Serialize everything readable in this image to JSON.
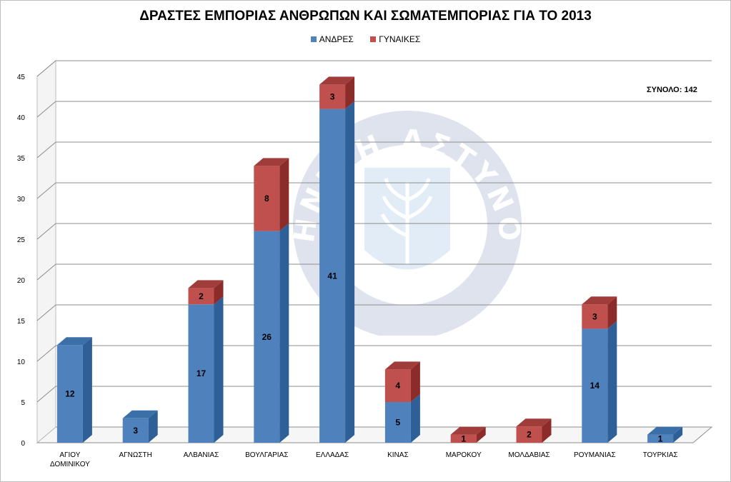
{
  "chart_data": {
    "type": "bar",
    "stacked": true,
    "title": "ΔΡΑΣΤΕΣ ΕΜΠΟΡΙΑΣ ΑΝΘΡΩΠΩΝ ΚΑΙ ΣΩΜΑΤΕΜΠΟΡΙΑΣ ΓΙΑ ΤΟ 2013",
    "annotation": "ΣΥΝΟΛΟ: 142",
    "categories": [
      "ΑΓΙΟΥ ΔΟΜΙΝΙΚΟΥ",
      "ΑΓΝΩΣΤΗ",
      "ΑΛΒΑΝΙΑΣ",
      "ΒΟΥΛΓΑΡΙΑΣ",
      "ΕΛΛΑΔΑΣ",
      "ΚΙΝΑΣ",
      "ΜΑΡΟΚΟΥ",
      "ΜΟΛΔΑΒΙΑΣ",
      "ΡΟΥΜΑΝΙΑΣ",
      "ΤΟΥΡΚΙΑΣ"
    ],
    "series": [
      {
        "name": "ΑΝΔΡΕΣ",
        "color": "#4f81bd",
        "values": [
          12,
          3,
          17,
          26,
          41,
          5,
          0,
          0,
          14,
          1
        ]
      },
      {
        "name": "ΓΥΝΑΙΚΕΣ",
        "color": "#c0504d",
        "values": [
          0,
          0,
          2,
          8,
          3,
          4,
          1,
          2,
          3,
          0
        ]
      }
    ],
    "ylim": [
      0,
      45
    ],
    "yticks": [
      0,
      5,
      10,
      15,
      20,
      25,
      30,
      35,
      40,
      45
    ],
    "grid": true,
    "legend_position": "top"
  },
  "watermark_text": "ΕΛΛΗΝΙΚΗ ΑΣΤΥΝΟΜΙΑ"
}
